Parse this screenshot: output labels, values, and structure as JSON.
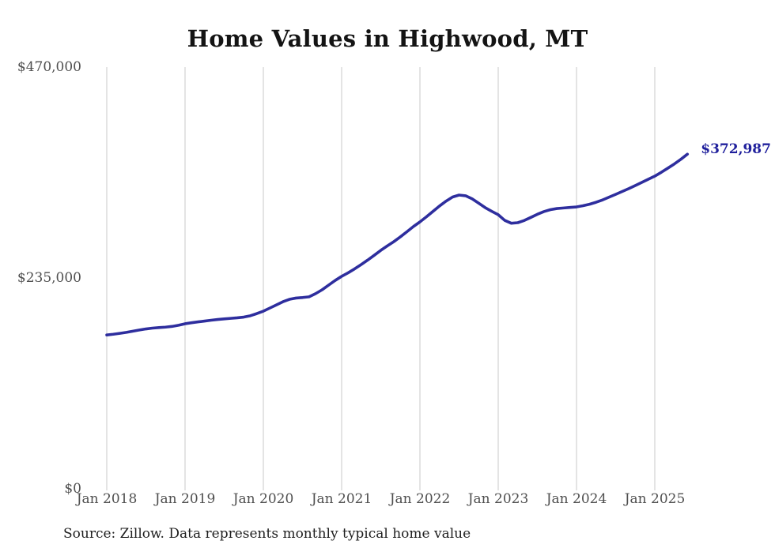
{
  "title": "Home Values in Highwood, MT",
  "source_note": "Source: Zillow. Data represents monthly typical home value",
  "chart_data": {
    "type": "line",
    "title": "Home Values in Highwood, MT",
    "series_name": "Monthly typical home value",
    "start_month": "2018-01",
    "end_month": "2025-06",
    "x_tick_labels": [
      "Jan 2018",
      "Jan 2019",
      "Jan 2020",
      "Jan 2021",
      "Jan 2022",
      "Jan 2023",
      "Jan 2024",
      "Jan 2025"
    ],
    "y_tick_labels": [
      "$0",
      "$235,000",
      "$470,000"
    ],
    "y_ticks": [
      0,
      235000,
      470000
    ],
    "ylim": [
      0,
      470000
    ],
    "grid": "vertical-only",
    "values": [
      171500,
      172300,
      173300,
      174400,
      175700,
      177000,
      178200,
      179100,
      179700,
      180200,
      181000,
      182300,
      184000,
      185100,
      186100,
      187000,
      187900,
      188700,
      189400,
      190000,
      190600,
      191400,
      192900,
      195300,
      198000,
      201500,
      205000,
      208500,
      211200,
      212600,
      213200,
      214000,
      217500,
      221800,
      227000,
      232200,
      236800,
      240800,
      245200,
      250000,
      255000,
      260300,
      265800,
      270800,
      275500,
      280800,
      286500,
      292300,
      297500,
      303200,
      309200,
      315200,
      320600,
      325200,
      327400,
      326600,
      323200,
      318400,
      313400,
      309300,
      305500,
      299200,
      296000,
      296600,
      299100,
      302500,
      306000,
      309000,
      311100,
      312400,
      313000,
      313600,
      314200,
      315500,
      317200,
      319400,
      322000,
      325100,
      328200,
      331400,
      334600,
      338000,
      341500,
      345000,
      348500,
      352800,
      357400,
      362100,
      367300,
      372987
    ],
    "end_label": "$372,987",
    "end_value": 372987,
    "line_color": "#2e2e9e",
    "end_label_color": "#1f1f9c",
    "grid_color": "#c9c9c9",
    "tick_text_color": "#4f4f4f",
    "title_color": "#141414"
  }
}
